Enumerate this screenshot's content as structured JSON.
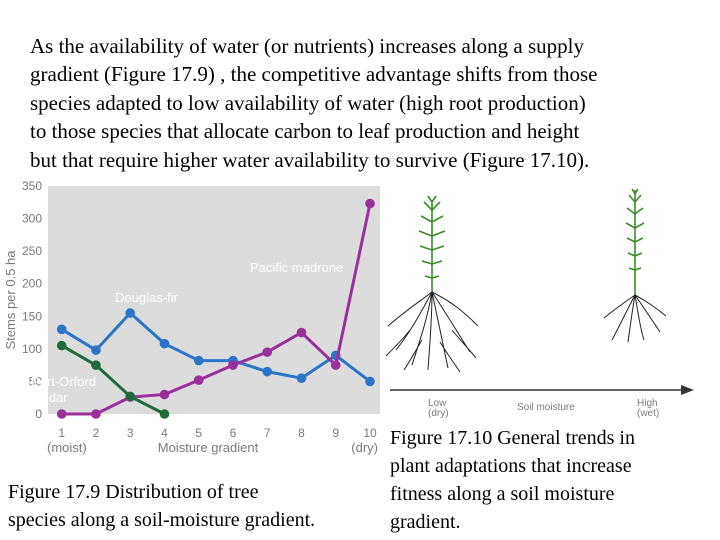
{
  "paragraph": {
    "lines": [
      "As the availability of water (or nutrients) increases along a supply",
      "gradient (Figure 17.9) , the competitive advantage shifts from those",
      "species adapted to low availability of water (high root production)",
      "to those species that allocate carbon to leaf production and height",
      "but that require higher water availability to survive (Figure 17.10)."
    ]
  },
  "figure_9": {
    "caption_lines": [
      "Figure 17.9  Distribution of tree",
      "species along a soil-moisture gradient."
    ]
  },
  "figure_10": {
    "caption_lines": [
      "Figure 17.10 General trends in",
      "plant adaptations that increase",
      "fitness along a soil moisture",
      "gradient."
    ],
    "axis_label": "Soil moisture",
    "low_label": "Low",
    "low_sub": "(dry)",
    "high_label": "High",
    "high_sub": "(wet)"
  },
  "colors": {
    "douglas_fir": "#2a74c9",
    "pacific_madrone": "#9b2f9b",
    "port_orford_cedar": "#1f6b3a",
    "plot_background": "#dcdcdc",
    "axis_text": "#7a7a7a",
    "plant_green": "#3d8b2a"
  },
  "chart_data": {
    "type": "line",
    "x": [
      1,
      2,
      3,
      4,
      5,
      6,
      7,
      8,
      9,
      10
    ],
    "xlim": [
      0.6,
      10
    ],
    "ylim": [
      0,
      350
    ],
    "ylabel": "Stems per 0.5 ha",
    "xlabel": "Moisture gradient",
    "x_end_labels": {
      "left": "(moist)",
      "right": "(dry)"
    },
    "yticks": [
      0,
      50,
      100,
      150,
      200,
      250,
      300,
      350
    ],
    "grid": false,
    "series": [
      {
        "name": "Douglas-fir",
        "color": "#2a74c9",
        "x": [
          1,
          2,
          3,
          4,
          5,
          6,
          7,
          8,
          9,
          10
        ],
        "values": [
          130,
          98,
          155,
          108,
          82,
          82,
          65,
          55,
          90,
          50
        ]
      },
      {
        "name": "Pacific madrone",
        "color": "#9b2f9b",
        "x": [
          1,
          2,
          3,
          4,
          5,
          6,
          7,
          8,
          9,
          10
        ],
        "values": [
          0,
          0,
          26,
          30,
          52,
          75,
          95,
          125,
          75,
          323
        ]
      },
      {
        "name": "Port-Orford\ncedar",
        "color": "#1f6b3a",
        "x": [
          1,
          2,
          3,
          4
        ],
        "values": [
          105,
          75,
          27,
          0
        ]
      }
    ]
  }
}
